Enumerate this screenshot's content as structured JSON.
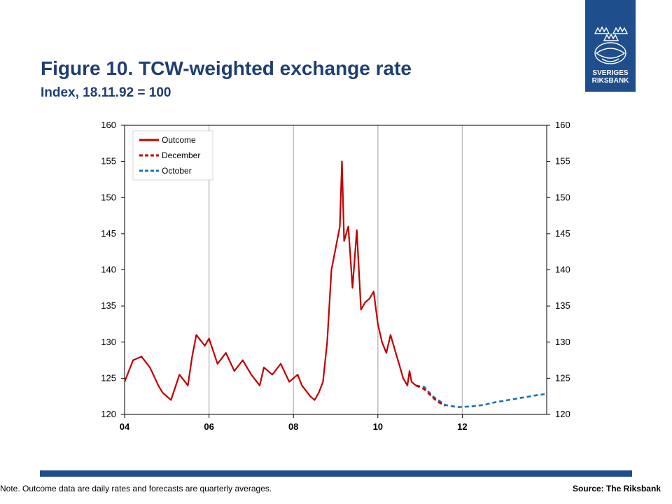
{
  "title": "Figure 10. TCW-weighted exchange rate",
  "subtitle": "Index, 18.11.92 = 100",
  "logo": {
    "line1": "SVERIGES",
    "line2": "RIKSBANK"
  },
  "note": "Note. Outcome data are daily rates and forecasts are quarterly averages.",
  "source": "Source: The Riksbank",
  "colors": {
    "brand": "#1f4e8c",
    "outcome": "#c00000",
    "december": "#c00000",
    "october": "#1f6fbf",
    "grid": "#bfbfbf"
  },
  "chart_data": {
    "type": "line",
    "ylim": [
      120,
      160
    ],
    "yticks": [
      "120",
      "125",
      "130",
      "135",
      "140",
      "145",
      "150",
      "155",
      "160"
    ],
    "xlim": [
      2004.0,
      2014.0
    ],
    "xticks": [
      {
        "label": "04",
        "value": 2004
      },
      {
        "label": "06",
        "value": 2006
      },
      {
        "label": "08",
        "value": 2008
      },
      {
        "label": "10",
        "value": 2010
      },
      {
        "label": "12",
        "value": 2012
      }
    ],
    "grid": true,
    "legend_position": "top-left",
    "series": [
      {
        "name": "Outcome",
        "style": "solid",
        "x": [
          2004.0,
          2004.2,
          2004.4,
          2004.6,
          2004.8,
          2004.9,
          2005.1,
          2005.3,
          2005.5,
          2005.6,
          2005.7,
          2005.9,
          2006.0,
          2006.2,
          2006.4,
          2006.6,
          2006.8,
          2007.0,
          2007.2,
          2007.3,
          2007.5,
          2007.7,
          2007.9,
          2008.1,
          2008.2,
          2008.4,
          2008.5,
          2008.6,
          2008.7,
          2008.8,
          2008.9,
          2009.0,
          2009.1,
          2009.15,
          2009.2,
          2009.3,
          2009.4,
          2009.5,
          2009.6,
          2009.7,
          2009.8,
          2009.9,
          2010.0,
          2010.1,
          2010.2,
          2010.3,
          2010.4,
          2010.5,
          2010.6,
          2010.7,
          2010.75,
          2010.8,
          2010.9
        ],
        "y": [
          124.5,
          127.5,
          128.0,
          126.5,
          124.0,
          123.0,
          122.0,
          125.5,
          124.0,
          128.0,
          131.0,
          129.5,
          130.5,
          127.0,
          128.5,
          126.0,
          127.5,
          125.5,
          124.0,
          126.5,
          125.5,
          127.0,
          124.5,
          125.5,
          124.0,
          122.5,
          122.0,
          123.0,
          124.5,
          130.0,
          140.0,
          143.0,
          146.0,
          155.0,
          144.0,
          146.0,
          137.5,
          145.5,
          134.5,
          135.5,
          136.0,
          137.0,
          132.5,
          130.0,
          128.5,
          131.0,
          129.0,
          127.0,
          125.0,
          124.0,
          126.0,
          124.5,
          124.0
        ]
      },
      {
        "name": "December",
        "style": "dashed",
        "x": [
          2010.9,
          2011.1,
          2011.4,
          2011.6
        ],
        "y": [
          124.0,
          123.5,
          121.8,
          121.2
        ]
      },
      {
        "name": "October",
        "style": "dashed",
        "x": [
          2010.9,
          2011.1,
          2011.3,
          2011.6,
          2011.9,
          2012.2,
          2012.5,
          2012.8,
          2013.1,
          2013.4,
          2013.7,
          2013.95
        ],
        "y": [
          124.0,
          123.8,
          122.5,
          121.3,
          121.0,
          121.1,
          121.3,
          121.7,
          122.0,
          122.3,
          122.6,
          122.8
        ]
      }
    ]
  }
}
